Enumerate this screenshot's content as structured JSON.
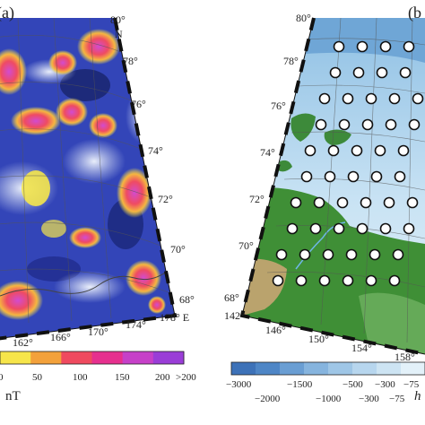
{
  "panel_a": {
    "label": "(a)",
    "lat_labels": [
      "80°",
      "78°",
      "76°",
      "74°",
      "72°",
      "70°",
      "68°"
    ],
    "lon_labels": [
      "162°",
      "166°",
      "170°",
      "174°",
      "178° E"
    ],
    "north_label": "N",
    "colorbar": {
      "ticks": [
        "0",
        "50",
        "100",
        "150",
        "200",
        ">200"
      ],
      "unit": "nT",
      "colors": [
        "#f6e54a",
        "#f3a13b",
        "#ef4a5f",
        "#e6308e",
        "#c640c8",
        "#9a3dd7"
      ]
    }
  },
  "panel_b": {
    "label": "(b",
    "lat_labels": [
      "80°",
      "78°",
      "76°",
      "74°",
      "72°",
      "70°",
      "68°"
    ],
    "lon_labels": [
      "142°",
      "146°",
      "150°",
      "154°",
      "158°"
    ],
    "colorbar": {
      "ticks_upper": [
        "−3000",
        "−1500",
        "−500",
        "−300",
        "−75"
      ],
      "ticks_lower": [
        "−2000",
        "−1000",
        "−300",
        "−75"
      ],
      "unit": "h",
      "colors": [
        "#3d72b8",
        "#4e86c6",
        "#6a9ed3",
        "#86b4de",
        "#9fc6e6",
        "#b7d6ee",
        "#cde4f3",
        "#e3f1f9"
      ]
    }
  }
}
